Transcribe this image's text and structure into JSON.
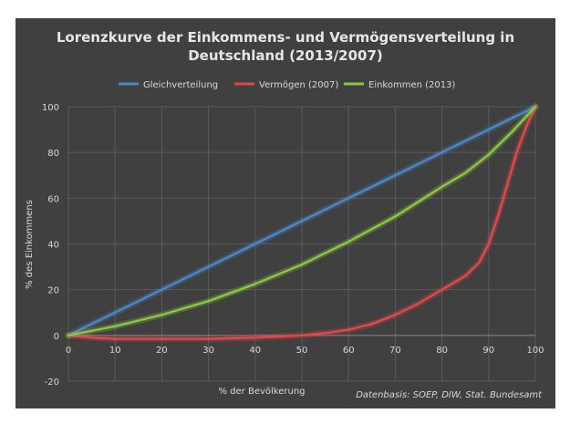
{
  "chart_data": {
    "type": "line",
    "title_line1": "Lorenzkurve der Einkommens- und Vermögensverteilung in",
    "title_line2": "Deutschland (2013/2007)",
    "xlabel": "% der Bevölkerung",
    "ylabel": "% des Einkommens",
    "source": "Datenbasis: SOEP, DIW, Stat. Bundesamt",
    "xlim": [
      0,
      100
    ],
    "ylim": [
      -20,
      100
    ],
    "x_ticks": [
      "0",
      "10",
      "20",
      "30",
      "40",
      "50",
      "60",
      "70",
      "80",
      "90",
      "100"
    ],
    "y_ticks": [
      "-20",
      "0",
      "20",
      "40",
      "60",
      "80",
      "100"
    ],
    "grid": true,
    "legend_position": "top",
    "series": [
      {
        "name": "Gleichverteilung",
        "color": "#4a86c8",
        "points": [
          [
            0,
            0
          ],
          [
            100,
            100
          ]
        ]
      },
      {
        "name": "Vermögen (2007)",
        "color": "#e04848",
        "points": [
          [
            0,
            0
          ],
          [
            5,
            -1
          ],
          [
            10,
            -1.5
          ],
          [
            20,
            -1.5
          ],
          [
            30,
            -1.5
          ],
          [
            40,
            -1
          ],
          [
            45,
            -0.5
          ],
          [
            50,
            0
          ],
          [
            55,
            1
          ],
          [
            60,
            2.5
          ],
          [
            65,
            5
          ],
          [
            70,
            9
          ],
          [
            75,
            14
          ],
          [
            80,
            20
          ],
          [
            85,
            26
          ],
          [
            88,
            32
          ],
          [
            90,
            40
          ],
          [
            92,
            52
          ],
          [
            94,
            66
          ],
          [
            96,
            80
          ],
          [
            98,
            91
          ],
          [
            100,
            100
          ]
        ]
      },
      {
        "name": "Einkommen (2013)",
        "color": "#8cc63f",
        "points": [
          [
            0,
            0
          ],
          [
            10,
            4
          ],
          [
            20,
            9
          ],
          [
            30,
            15
          ],
          [
            40,
            22.5
          ],
          [
            50,
            31
          ],
          [
            60,
            41
          ],
          [
            70,
            52
          ],
          [
            80,
            65
          ],
          [
            85,
            71
          ],
          [
            90,
            79
          ],
          [
            95,
            89
          ],
          [
            100,
            100
          ]
        ]
      }
    ]
  }
}
